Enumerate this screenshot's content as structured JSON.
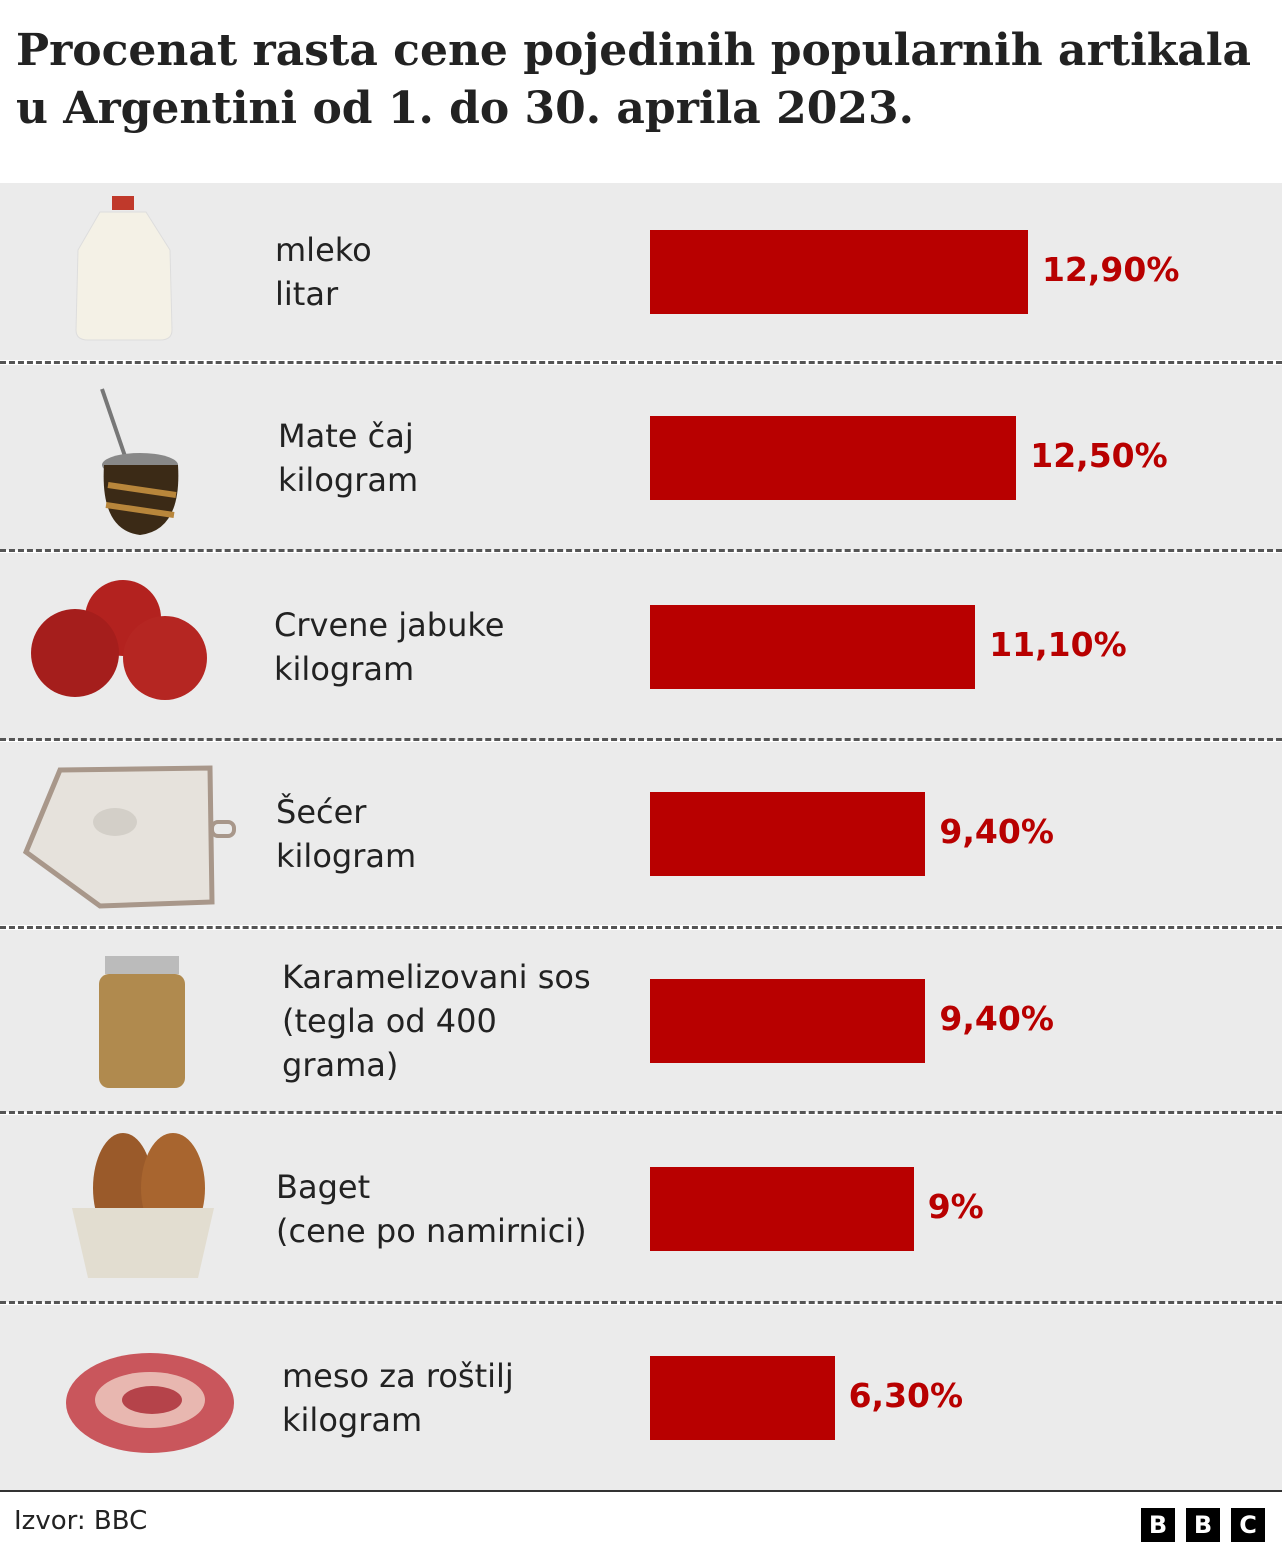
{
  "chart_data": {
    "type": "bar",
    "orientation": "horizontal",
    "title": "Procenat rasta cene pojedinih popularnih artikala u Argentini od 1. do 30. aprila 2023.",
    "categories": [
      "mleko\nlitar",
      "Mate čaj\nkilogram",
      "Crvene jabuke\nkilogram",
      "Šećer\nkilogram",
      "Karamelizovani sos\n(tegla od 400\ngrama)",
      "Baget\n(cene po namirnici)",
      "meso za roštilj\nkilogram"
    ],
    "values": [
      12.9,
      12.5,
      11.1,
      9.4,
      9.4,
      9,
      6.3
    ],
    "value_labels": [
      "12,90%",
      "12,50%",
      "11,10%",
      "9,40%",
      "9,40%",
      "9%",
      "6,30%"
    ],
    "color": "#b80000",
    "source": "Izvor: BBC",
    "logo": [
      "B",
      "B",
      "C"
    ]
  }
}
